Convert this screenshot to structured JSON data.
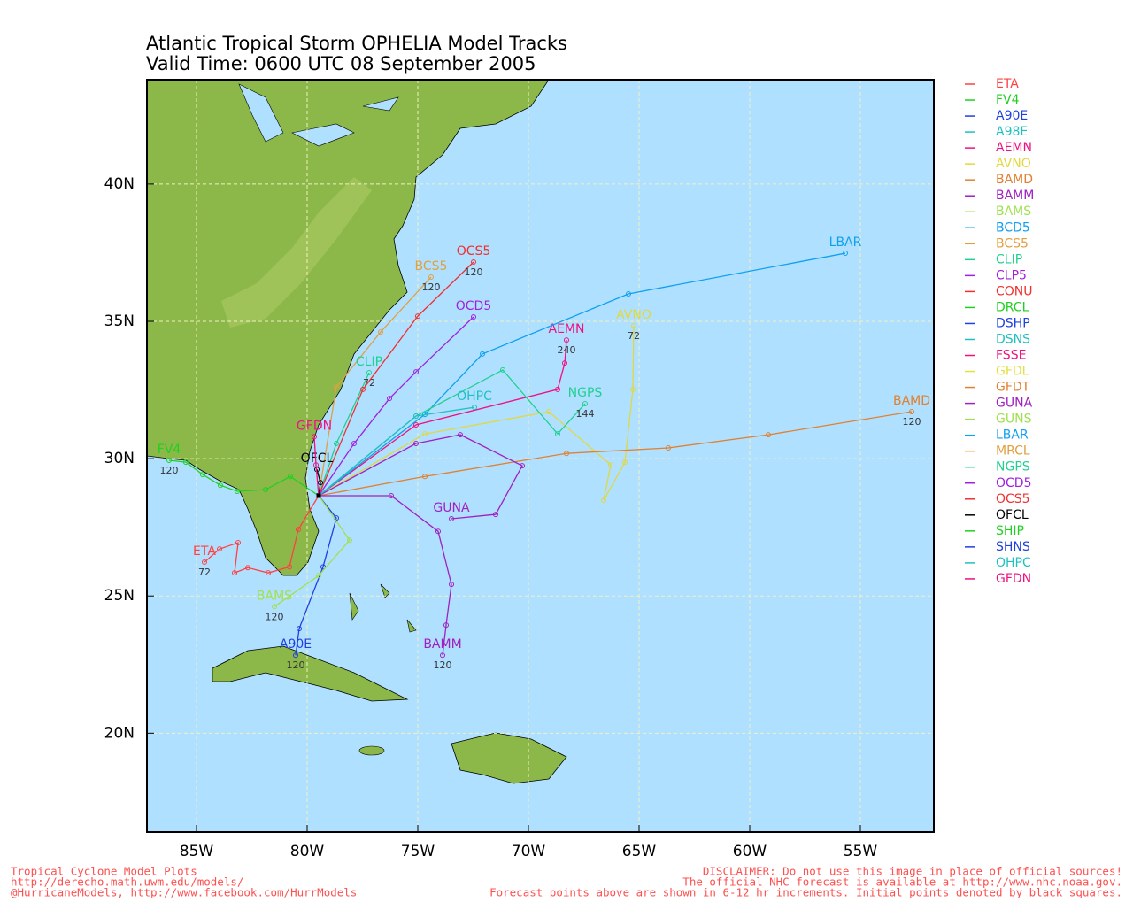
{
  "title": [
    "Atlantic Tropical Storm OPHELIA Model Tracks",
    "Valid Time: 0600 UTC 08 September 2005"
  ],
  "chart_data": {
    "type": "track-map",
    "xlim": [
      -87.24,
      -51.68
    ],
    "ylim": [
      16.4,
      43.8
    ],
    "xticks": [
      {
        "value": -85,
        "label": "85W"
      },
      {
        "value": -80,
        "label": "80W"
      },
      {
        "value": -75,
        "label": "75W"
      },
      {
        "value": -70,
        "label": "70W"
      },
      {
        "value": -65,
        "label": "65W"
      },
      {
        "value": -60,
        "label": "60W"
      },
      {
        "value": -55,
        "label": "55W"
      }
    ],
    "yticks": [
      {
        "value": 20,
        "label": "20N"
      },
      {
        "value": 25,
        "label": "25N"
      },
      {
        "value": 30,
        "label": "30N"
      },
      {
        "value": 35,
        "label": "35N"
      },
      {
        "value": 40,
        "label": "40N"
      }
    ],
    "grid": true,
    "series": [
      {
        "name": "ETA",
        "color": "#ff4040",
        "lon": [
          -79.48,
          -80.4,
          -80.8,
          -81.76,
          -82.68,
          -83.28,
          -83.12,
          -83.96,
          -84.64
        ],
        "lat": [
          28.65,
          27.42,
          26.06,
          25.84,
          26.03,
          25.84,
          26.94,
          26.71,
          26.23
        ],
        "end_hour": 72
      },
      {
        "name": "FV4",
        "color": "#20d020",
        "lon": [
          -79.48,
          -80.76,
          -81.88,
          -83.16,
          -83.92,
          -84.72,
          -85.48,
          -86.24
        ],
        "lat": [
          28.65,
          29.35,
          28.87,
          28.81,
          29.03,
          29.42,
          29.87,
          29.94
        ],
        "end_hour": 120
      },
      {
        "name": "A90E",
        "color": "#2040e0",
        "lon": [
          -79.48,
          -78.68,
          -79.28,
          -80.36,
          -80.52
        ],
        "lat": [
          28.65,
          27.84,
          26.06,
          23.81,
          22.84
        ],
        "end_hour": 120
      },
      {
        "name": "A98E",
        "color": "#20c0c0"
      },
      {
        "name": "AEMN",
        "color": "#f01080",
        "lon": [
          -79.48,
          -75.08,
          -68.68,
          -68.36,
          -68.28
        ],
        "lat": [
          28.65,
          31.23,
          32.52,
          33.48,
          34.32
        ],
        "end_hour": 240
      },
      {
        "name": "AVNO",
        "color": "#e0d840",
        "lon": [
          -79.48,
          -74.68,
          -69.08,
          -66.28,
          -66.6,
          -65.64,
          -65.28,
          -65.24
        ],
        "lat": [
          28.65,
          30.9,
          31.71,
          29.77,
          28.48,
          29.87,
          32.52,
          34.84
        ],
        "end_hour": 72
      },
      {
        "name": "BAMD",
        "color": "#e08030",
        "lon": [
          -79.48,
          -74.68,
          -68.28,
          -63.68,
          -59.16,
          -52.68
        ],
        "lat": [
          28.65,
          29.35,
          30.19,
          30.39,
          30.87,
          31.71
        ],
        "end_hour": 120
      },
      {
        "name": "BAMM",
        "color": "#a020c0",
        "lon": [
          -79.48,
          -76.2,
          -74.08,
          -73.48,
          -73.72,
          -73.88
        ],
        "lat": [
          28.65,
          28.65,
          27.35,
          25.42,
          23.94,
          22.84
        ],
        "end_hour": 120
      },
      {
        "name": "BAMS",
        "color": "#a0e050",
        "lon": [
          -79.48,
          -78.08,
          -79.48,
          -81.48
        ],
        "lat": [
          28.65,
          27.03,
          25.74,
          24.61
        ],
        "end_hour": 120
      },
      {
        "name": "BCD5",
        "color": "#10a0f0"
      },
      {
        "name": "BCS5",
        "color": "#e0a040",
        "lon": [
          -79.48,
          -78.68,
          -76.68,
          -74.4
        ],
        "lat": [
          28.65,
          32.61,
          34.61,
          36.61
        ],
        "end_hour": 120
      },
      {
        "name": "CLIP",
        "color": "#20d090",
        "lon": [
          -79.48,
          -78.68,
          -77.2
        ],
        "lat": [
          28.65,
          30.55,
          33.13
        ],
        "end_hour": 72
      },
      {
        "name": "CLP5",
        "color": "#a020e0"
      },
      {
        "name": "CONU",
        "color": "#f03030"
      },
      {
        "name": "DRCL",
        "color": "#20d020"
      },
      {
        "name": "DSHP",
        "color": "#2040e0"
      },
      {
        "name": "DSNS",
        "color": "#20c0c0"
      },
      {
        "name": "FSSE",
        "color": "#f01080"
      },
      {
        "name": "GFDL",
        "color": "#e0e040"
      },
      {
        "name": "GFDT",
        "color": "#e08030"
      },
      {
        "name": "GUNA",
        "color": "#a020c0",
        "lon": [
          -79.48,
          -75.08,
          -73.08,
          -70.28,
          -71.48,
          -73.48
        ],
        "lat": [
          28.65,
          30.55,
          30.87,
          29.74,
          27.97,
          27.81
        ]
      },
      {
        "name": "GUNS",
        "color": "#a0e050"
      },
      {
        "name": "LBAR",
        "color": "#10a0f0",
        "lon": [
          -79.48,
          -74.68,
          -72.08,
          -65.48,
          -55.68
        ],
        "lat": [
          28.65,
          31.61,
          33.81,
          36.0,
          37.48
        ]
      },
      {
        "name": "MRCL",
        "color": "#e0a040"
      },
      {
        "name": "NGPS",
        "color": "#20d090",
        "lon": [
          -79.48,
          -75.08,
          -71.16,
          -68.68,
          -67.44
        ],
        "lat": [
          28.65,
          31.55,
          33.23,
          30.9,
          32.0
        ],
        "end_hour": 144
      },
      {
        "name": "OCD5",
        "color": "#a020e0",
        "lon": [
          -79.48,
          -77.88,
          -76.28,
          -75.08,
          -72.48
        ],
        "lat": [
          28.65,
          30.55,
          32.19,
          33.16,
          35.16
        ]
      },
      {
        "name": "OCS5",
        "color": "#f03030",
        "lon": [
          -79.48,
          -77.48,
          -75.0,
          -72.48
        ],
        "lat": [
          28.65,
          32.52,
          35.19,
          37.16
        ],
        "end_hour": 120
      },
      {
        "name": "OFCL",
        "color": "#000000",
        "lon": [
          -79.48,
          -79.4,
          -79.56
        ],
        "lat": [
          28.65,
          29.13,
          29.61
        ]
      },
      {
        "name": "SHIP",
        "color": "#20d020"
      },
      {
        "name": "SHNS",
        "color": "#2040e0"
      },
      {
        "name": "OHPC",
        "color": "#20c0c0",
        "lon": [
          -79.48,
          -75.08,
          -72.44
        ],
        "lat": [
          28.65,
          31.55,
          31.87
        ]
      },
      {
        "name": "GFDN",
        "color": "#f01080",
        "lon": [
          -79.48,
          -79.6,
          -79.68
        ],
        "lat": [
          28.65,
          29.77,
          30.8
        ]
      }
    ]
  },
  "footer": {
    "left": [
      "Tropical Cyclone Model Plots",
      "http://derecho.math.uwm.edu/models/",
      "@HurricaneModels, http://www.facebook.com/HurrModels"
    ],
    "right": [
      "DISCLAIMER: Do not use this image in place of official sources!",
      "The official NHC forecast is available at http://www.nhc.noaa.gov.",
      "Forecast points above are shown in 6-12 hr increments. Initial points denoted by black squares."
    ]
  }
}
